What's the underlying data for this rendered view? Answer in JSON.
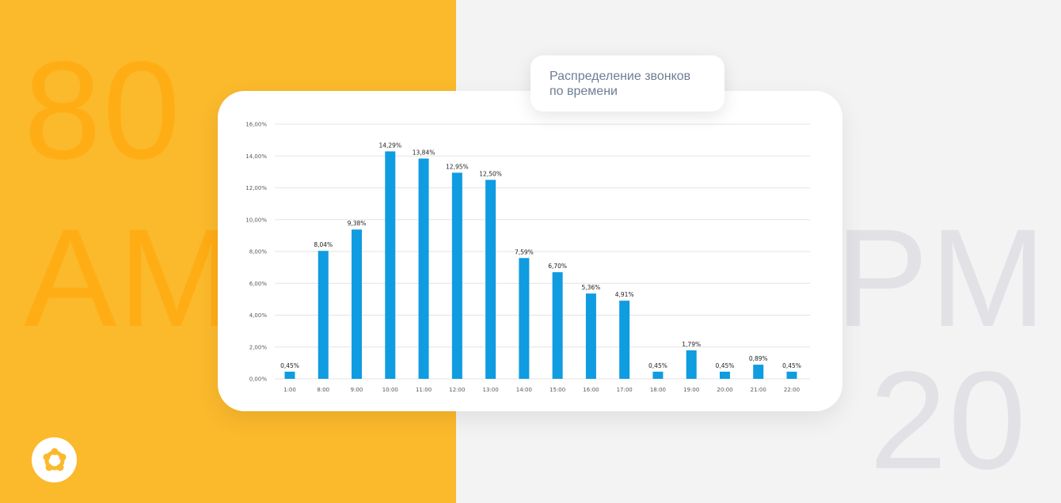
{
  "background": {
    "left_color": "#fbb92c",
    "right_color": "#f3f3f4",
    "big_text": {
      "left_top": "80",
      "left_bottom": "AM",
      "right_mid": "PM",
      "right_bottom": "20"
    }
  },
  "caption": {
    "line1": "Распределение звонков",
    "line2": "по времени"
  },
  "logo": {
    "icon": "brand-logo-icon",
    "color": "#fbb92c"
  },
  "chart_data": {
    "type": "bar",
    "categories": [
      "1:00",
      "8:00",
      "9:00",
      "10:00",
      "11:00",
      "12:00",
      "13:00",
      "14:00",
      "15:00",
      "16:00",
      "17:00",
      "18:00",
      "19:00",
      "20:00",
      "21:00",
      "22:00"
    ],
    "values": [
      0.45,
      8.04,
      9.38,
      14.29,
      13.84,
      12.95,
      12.5,
      7.59,
      6.7,
      5.36,
      4.91,
      0.45,
      1.79,
      0.45,
      0.89,
      0.45
    ],
    "value_labels": [
      "0,45%",
      "8,04%",
      "9,38%",
      "14,29%",
      "13,84%",
      "12,95%",
      "12,50%",
      "7,59%",
      "6,70%",
      "5,36%",
      "4,91%",
      "0,45%",
      "1,79%",
      "0,45%",
      "0,89%",
      "0,45%"
    ],
    "y_ticks": [
      0,
      2,
      4,
      6,
      8,
      10,
      12,
      14,
      16
    ],
    "y_tick_labels": [
      "0,00%",
      "2,00%",
      "4,00%",
      "6,00%",
      "8,00%",
      "10,00%",
      "12,00%",
      "14,00%",
      "16,00%"
    ],
    "ylim": [
      0,
      16
    ],
    "bar_color": "#0f9ce0",
    "grid": true,
    "title": "",
    "xlabel": "",
    "ylabel": ""
  }
}
